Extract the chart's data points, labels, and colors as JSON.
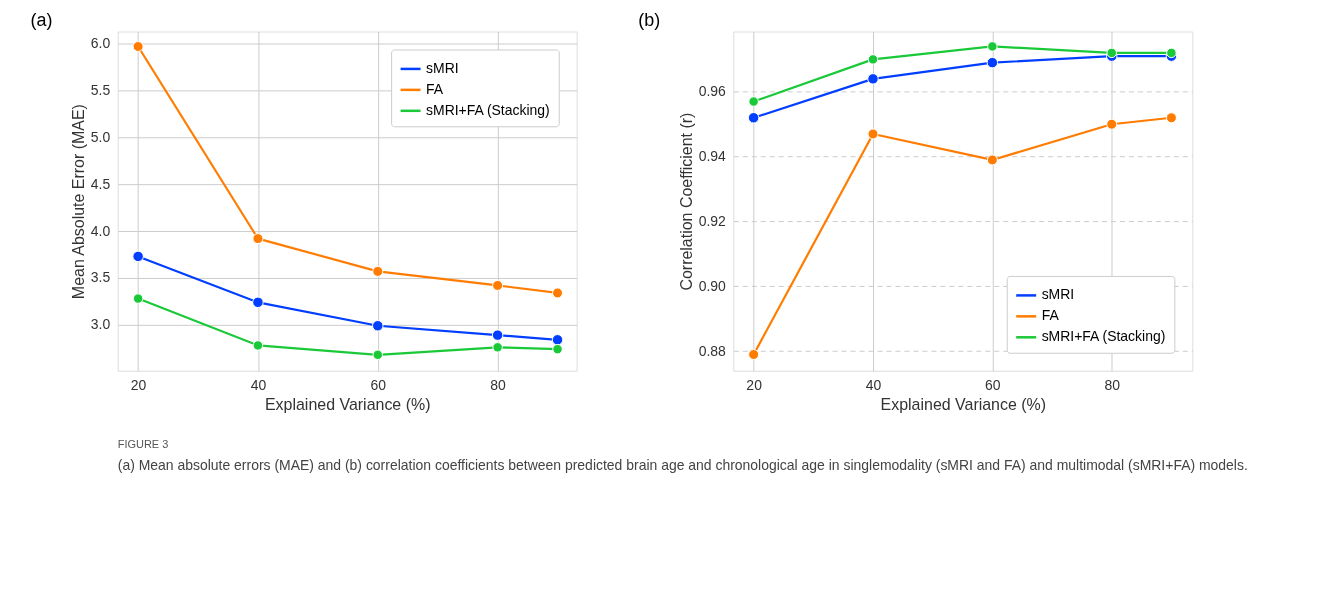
{
  "chart_data": [
    {
      "type": "line",
      "annotations": [
        "(a)",
        "FIGURE 3",
        "(a) Mean absolute errors (MAE) and (b) correlation coefficients between predicted brain age and chronological age in singlemodality (sMRI and FA) and multimodal (sMRI+FA) models."
      ],
      "xlabel": "Explained Variance (%)",
      "ylabel": "Mean Absolute Error (MAE)",
      "x": [
        20,
        40,
        60,
        80,
        90
      ],
      "xlim": [
        16.6,
        93.2
      ],
      "xticks": [
        20,
        40,
        60,
        80
      ],
      "ylim": [
        2.51,
        6.13
      ],
      "yticks": [
        {
          "value": 3,
          "label": "3.0"
        },
        3.5,
        {
          "value": 4,
          "label": "4.0"
        },
        4.5,
        {
          "value": 5,
          "label": "5.0"
        },
        5.5,
        {
          "value": 6,
          "label": "6.0"
        }
      ],
      "grid": true,
      "legend": "top right",
      "marker": "circle",
      "line_style": "solid",
      "series": [
        {
          "name": "sMRI",
          "color": "#023eff",
          "values": [
            3.73,
            3.24,
            2.99,
            2.89,
            2.84
          ]
        },
        {
          "name": "FA",
          "color": "#ff7c00",
          "values": [
            5.97,
            3.92,
            3.57,
            3.42,
            3.34
          ]
        },
        {
          "name": "sMRI+FA (Stacking)",
          "color": "#1ac938",
          "values": [
            3.28,
            2.78,
            2.68,
            2.76,
            2.74
          ]
        }
      ]
    },
    {
      "type": "line",
      "annotations": [
        "(b)"
      ],
      "xlabel": "Explained Variance (%)",
      "ylabel": "Correlation Coefficient (r)",
      "x": [
        20,
        40,
        60,
        80,
        90
      ],
      "xlim": [
        16.6,
        93.5
      ],
      "xticks": [
        20,
        40,
        60,
        80
      ],
      "ylim": [
        0.874,
        0.9786
      ],
      "yticks": [
        0.88,
        {
          "value": 0.9,
          "label": "0.90"
        },
        0.92,
        0.94,
        0.96
      ],
      "grid": true,
      "legend": "bottom right",
      "marker": "circle",
      "line_style": "solid",
      "series": [
        {
          "name": "sMRI",
          "color": "#023eff",
          "values": [
            0.952,
            0.964,
            0.969,
            0.971,
            0.971
          ]
        },
        {
          "name": "FA",
          "color": "#ff7c00",
          "values": [
            0.879,
            0.947,
            0.939,
            0.95,
            0.952
          ]
        },
        {
          "name": "sMRI+FA (Stacking)",
          "color": "#1ac938",
          "values": [
            0.957,
            0.97,
            0.974,
            0.972,
            0.972
          ]
        }
      ]
    }
  ]
}
